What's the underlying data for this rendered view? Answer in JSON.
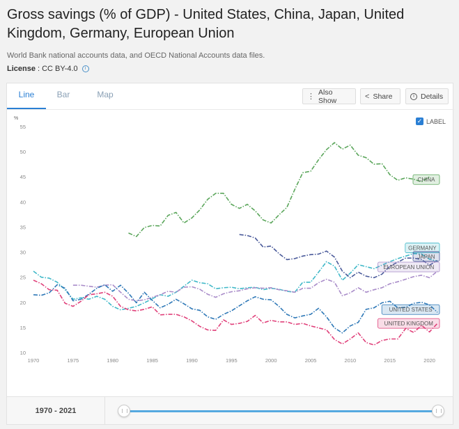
{
  "header": {
    "title": "Gross savings (% of GDP) - United States, China, Japan, United Kingdom, Germany, European Union",
    "source": "World Bank national accounts data, and OECD National Accounts data files.",
    "license_label": "License",
    "license_value": ": CC BY-4.0"
  },
  "tabs": [
    {
      "label": "Line",
      "active": true
    },
    {
      "label": "Bar",
      "active": false
    },
    {
      "label": "Map",
      "active": false
    }
  ],
  "toolbar": {
    "also_show": "Also Show",
    "share": "Share",
    "details": "Details"
  },
  "label_toggle": {
    "label": "LABEL",
    "checked": true
  },
  "range": {
    "label": "1970 - 2021",
    "start": 1970,
    "end": 2021
  },
  "chart_data": {
    "type": "line",
    "ylabel": "%",
    "xlim": [
      1970,
      2021
    ],
    "ylim": [
      10,
      55
    ],
    "yticks": [
      10,
      15,
      20,
      25,
      30,
      35,
      40,
      45,
      50,
      55
    ],
    "xticks": [
      1970,
      1975,
      1980,
      1985,
      1990,
      1995,
      2000,
      2005,
      2010,
      2015,
      2020
    ],
    "grid": false,
    "legend": "inline labels at line ends",
    "series": [
      {
        "name": "CHINA",
        "color": "#5ba65b",
        "x_start": 1982,
        "values": [
          33.8,
          33.1,
          34.9,
          35.3,
          35.2,
          37.3,
          37.9,
          35.8,
          36.8,
          38.4,
          40.5,
          41.7,
          41.7,
          39.5,
          38.7,
          39.5,
          38.2,
          36.4,
          35.8,
          37.4,
          38.9,
          42.5,
          45.8,
          46.1,
          48.4,
          50.4,
          51.8,
          50.5,
          51.3,
          49.3,
          48.8,
          47.5,
          47.6,
          45.4,
          44.3,
          44.8,
          44.5,
          44.0,
          45.0
        ]
      },
      {
        "name": "GERMANY",
        "color": "#3fb8c8",
        "x_start": 1970,
        "values": [
          26.2,
          25.0,
          24.8,
          24.0,
          22.5,
          20.6,
          20.9,
          20.6,
          21.2,
          20.6,
          19.2,
          18.5,
          18.8,
          19.2,
          19.9,
          20.7,
          21.5,
          21.2,
          22.0,
          23.2,
          24.4,
          23.9,
          23.7,
          22.7,
          22.9,
          23.0,
          22.7,
          22.9,
          23.0,
          22.5,
          22.8,
          22.6,
          22.2,
          22.0,
          24.0,
          24.0,
          26.0,
          28.1,
          27.2,
          24.4,
          25.8,
          27.5,
          27.1,
          26.7,
          27.4,
          28.1,
          28.7,
          29.2,
          29.7,
          29.6,
          28.6,
          28.2
        ]
      },
      {
        "name": "JAPAN",
        "color": "#4a5a9a",
        "x_start": 1996,
        "values": [
          33.5,
          33.3,
          32.8,
          31.0,
          31.2,
          29.7,
          28.5,
          28.7,
          29.2,
          29.5,
          29.6,
          30.2,
          29.0,
          26.2,
          24.9,
          26.0,
          25.2,
          24.9,
          25.6,
          27.2,
          28.0,
          28.8,
          28.8,
          28.5,
          27.4,
          28.3
        ]
      },
      {
        "name": "EUROPEAN UNION",
        "color": "#a98cc9",
        "x_start": 1975,
        "values": [
          23.4,
          23.4,
          23.2,
          23.0,
          23.4,
          23.5,
          22.0,
          20.6,
          20.3,
          20.5,
          21.0,
          21.5,
          22.2,
          22.0,
          23.0,
          23.1,
          22.6,
          21.6,
          21.0,
          21.7,
          22.1,
          22.3,
          22.7,
          22.9,
          22.8,
          22.9,
          22.5,
          22.3,
          22.0,
          22.8,
          22.8,
          23.9,
          24.6,
          24.0,
          21.3,
          21.9,
          22.9,
          22.0,
          22.5,
          22.9,
          23.7,
          24.1,
          24.6,
          25.1,
          25.4,
          24.9,
          26.2
        ]
      },
      {
        "name": "UNITED STATES",
        "color": "#2e78b7",
        "x_start": 1970,
        "values": [
          21.5,
          21.4,
          21.9,
          23.5,
          22.8,
          20.3,
          20.6,
          21.6,
          22.8,
          23.5,
          22.2,
          23.4,
          21.8,
          19.9,
          22.0,
          20.4,
          18.9,
          19.6,
          20.6,
          19.7,
          18.7,
          18.4,
          17.1,
          16.6,
          17.6,
          18.3,
          19.3,
          20.3,
          21.1,
          20.6,
          20.5,
          19.2,
          17.6,
          16.9,
          17.3,
          17.6,
          18.8,
          17.1,
          14.9,
          13.9,
          15.3,
          16.0,
          18.6,
          18.9,
          19.9,
          20.2,
          18.9,
          19.0,
          19.8,
          20.0,
          19.5,
          18.0
        ]
      },
      {
        "name": "UNITED KINGDOM",
        "color": "#e0407a",
        "x_start": 1970,
        "values": [
          24.4,
          23.7,
          22.5,
          22.4,
          19.8,
          19.2,
          20.2,
          21.5,
          21.7,
          22.0,
          21.2,
          19.2,
          18.5,
          18.3,
          18.6,
          19.1,
          17.5,
          17.6,
          17.6,
          17.1,
          16.3,
          15.2,
          14.5,
          14.4,
          16.5,
          15.6,
          15.8,
          16.2,
          17.4,
          15.9,
          16.4,
          16.1,
          16.1,
          15.6,
          15.8,
          15.3,
          14.9,
          14.5,
          12.6,
          11.7,
          12.7,
          13.9,
          12.0,
          11.5,
          12.4,
          12.7,
          12.7,
          14.8,
          14.0,
          15.4,
          14.1,
          15.8
        ]
      }
    ]
  }
}
